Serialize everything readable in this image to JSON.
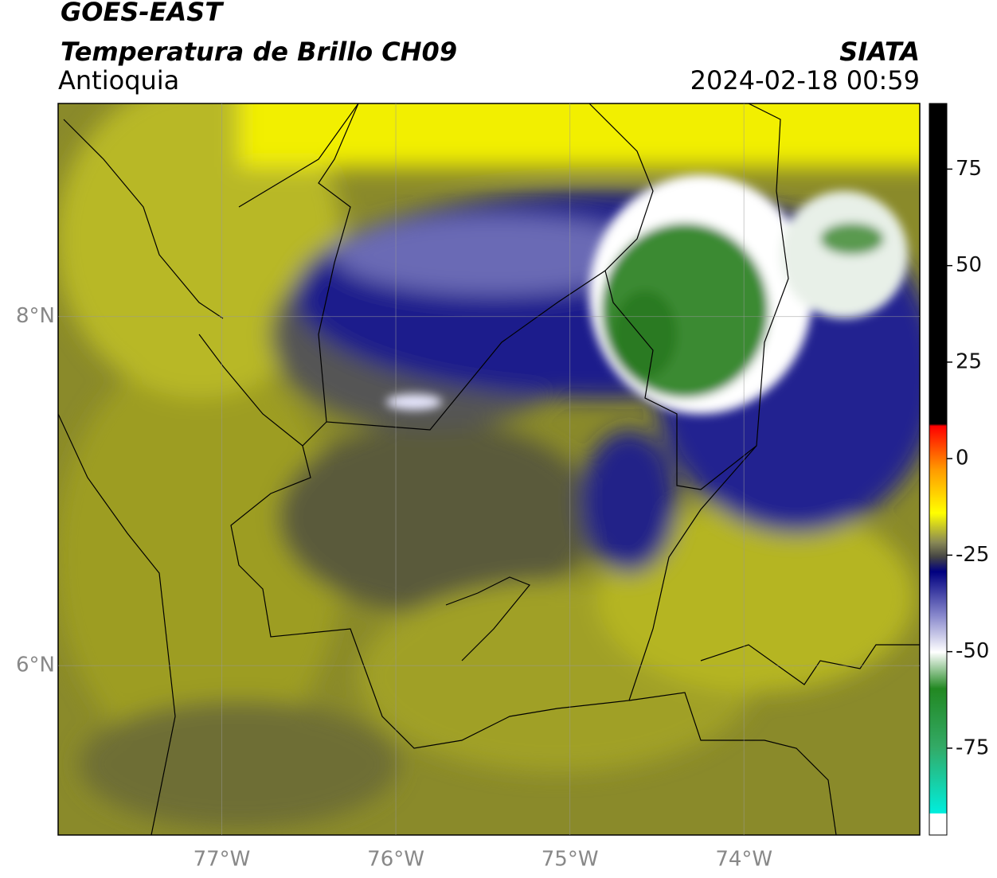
{
  "header": {
    "title": "GOES-EAST",
    "subtitle": "Temperatura de Brillo CH09",
    "region": "Antioquia",
    "source": "SIATA",
    "datetime": "2024-02-18 00:59"
  },
  "map": {
    "xlim": [
      -77.94,
      -72.99
    ],
    "ylim": [
      5.03,
      9.22
    ],
    "xticks": [
      {
        "value": -77,
        "label": "77°W"
      },
      {
        "value": -76,
        "label": "76°W"
      },
      {
        "value": -75,
        "label": "75°W"
      },
      {
        "value": -74,
        "label": "74°W"
      }
    ],
    "yticks": [
      {
        "value": 8,
        "label": "8°N"
      },
      {
        "value": 6,
        "label": "6°N"
      }
    ],
    "grid": true
  },
  "colorbar": {
    "lim": [
      -97.5,
      92
    ],
    "ticks": [
      75,
      50,
      25,
      0,
      -25,
      -50,
      -75
    ]
  }
}
